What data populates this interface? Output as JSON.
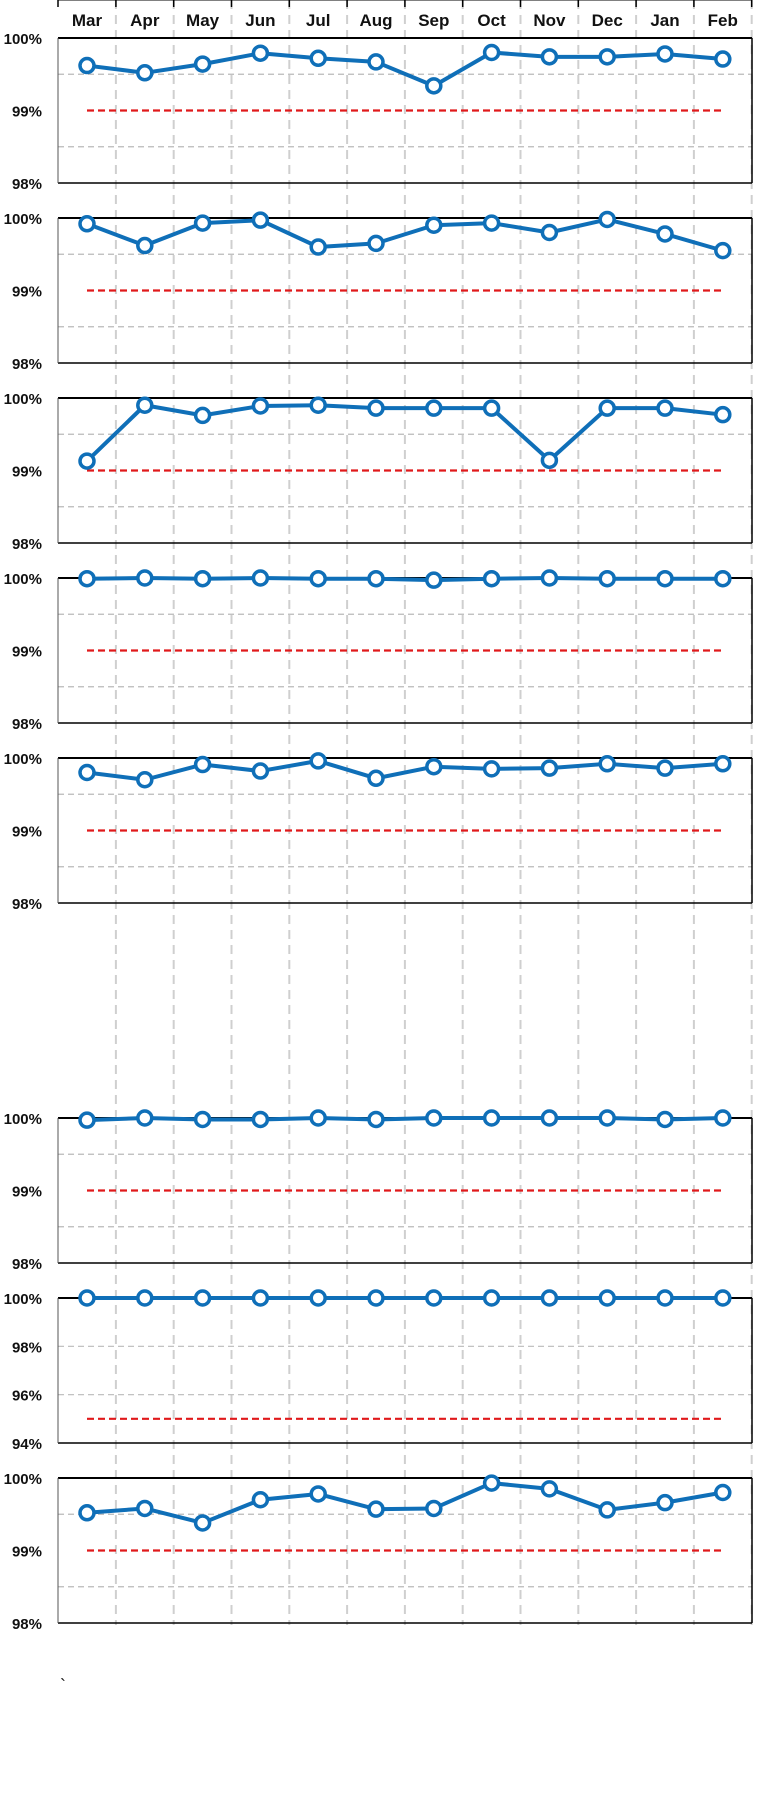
{
  "colors": {
    "series": "#0f6fb8",
    "target": "#e0191b",
    "grid": "#b9b9b9",
    "month_grid": "#cfcfcf",
    "frame": "#000000"
  },
  "stray_mark": "`",
  "chart_data": [
    {
      "type": "line",
      "categories": [
        "Mar",
        "Apr",
        "May",
        "Jun",
        "Jul",
        "Aug",
        "Sep",
        "Oct",
        "Nov",
        "Dec",
        "Jan",
        "Feb"
      ],
      "values": [
        99.62,
        99.52,
        99.64,
        99.79,
        99.72,
        99.67,
        99.34,
        99.8,
        99.74,
        99.74,
        99.78,
        99.71
      ],
      "target": 99.0,
      "ylim": [
        98,
        100
      ],
      "yticks": [
        "98%",
        "99%",
        "100%"
      ],
      "minor_gridlines": [
        98.5,
        99.5
      ],
      "grid": true
    },
    {
      "type": "line",
      "categories": [
        "Mar",
        "Apr",
        "May",
        "Jun",
        "Jul",
        "Aug",
        "Sep",
        "Oct",
        "Nov",
        "Dec",
        "Jan",
        "Feb"
      ],
      "values": [
        99.92,
        99.62,
        99.93,
        99.97,
        99.6,
        99.65,
        99.9,
        99.93,
        99.8,
        99.98,
        99.78,
        99.55
      ],
      "target": 99.0,
      "ylim": [
        98,
        100
      ],
      "yticks": [
        "98%",
        "99%",
        "100%"
      ],
      "minor_gridlines": [
        98.5,
        99.5
      ],
      "grid": true
    },
    {
      "type": "line",
      "categories": [
        "Mar",
        "Apr",
        "May",
        "Jun",
        "Jul",
        "Aug",
        "Sep",
        "Oct",
        "Nov",
        "Dec",
        "Jan",
        "Feb"
      ],
      "values": [
        99.13,
        99.9,
        99.76,
        99.89,
        99.9,
        99.86,
        99.86,
        99.86,
        99.14,
        99.86,
        99.86,
        99.77
      ],
      "target": 99.0,
      "ylim": [
        98,
        100
      ],
      "yticks": [
        "98%",
        "99%",
        "100%"
      ],
      "minor_gridlines": [
        98.5,
        99.5
      ],
      "grid": true
    },
    {
      "type": "line",
      "categories": [
        "Mar",
        "Apr",
        "May",
        "Jun",
        "Jul",
        "Aug",
        "Sep",
        "Oct",
        "Nov",
        "Dec",
        "Jan",
        "Feb"
      ],
      "values": [
        99.99,
        100.0,
        99.99,
        100.0,
        99.99,
        99.99,
        99.97,
        99.99,
        100.0,
        99.99,
        99.99,
        99.99
      ],
      "target": 99.0,
      "ylim": [
        98,
        100
      ],
      "yticks": [
        "98%",
        "99%",
        "100%"
      ],
      "minor_gridlines": [
        98.5,
        99.5
      ],
      "grid": true
    },
    {
      "type": "line",
      "categories": [
        "Mar",
        "Apr",
        "May",
        "Jun",
        "Jul",
        "Aug",
        "Sep",
        "Oct",
        "Nov",
        "Dec",
        "Jan",
        "Feb"
      ],
      "values": [
        99.8,
        99.7,
        99.91,
        99.82,
        99.96,
        99.72,
        99.88,
        99.85,
        99.86,
        99.92,
        99.86,
        99.92
      ],
      "target": 99.0,
      "ylim": [
        98,
        100
      ],
      "yticks": [
        "98%",
        "99%",
        "100%"
      ],
      "minor_gridlines": [
        98.5,
        99.5
      ],
      "grid": true
    },
    {
      "type": "line",
      "categories": [
        "Mar",
        "Apr",
        "May",
        "Jun",
        "Jul",
        "Aug",
        "Sep",
        "Oct",
        "Nov",
        "Dec",
        "Jan",
        "Feb"
      ],
      "values": [
        99.97,
        100.0,
        99.98,
        99.98,
        100.0,
        99.98,
        100.0,
        100.0,
        100.0,
        100.0,
        99.98,
        100.0
      ],
      "target": 99.0,
      "ylim": [
        98,
        100
      ],
      "yticks": [
        "98%",
        "99%",
        "100%"
      ],
      "minor_gridlines": [
        98.5,
        99.5
      ],
      "grid": true
    },
    {
      "type": "line",
      "categories": [
        "Mar",
        "Apr",
        "May",
        "Jun",
        "Jul",
        "Aug",
        "Sep",
        "Oct",
        "Nov",
        "Dec",
        "Jan",
        "Feb"
      ],
      "values": [
        100.0,
        100.0,
        100.0,
        100.0,
        100.0,
        100.0,
        100.0,
        100.0,
        100.0,
        100.0,
        100.0,
        100.0
      ],
      "target": 95.0,
      "ylim": [
        94,
        100
      ],
      "yticks": [
        "94%",
        "96%",
        "98%",
        "100%"
      ],
      "minor_gridlines": [
        96,
        98
      ],
      "grid": true
    },
    {
      "type": "line",
      "categories": [
        "Mar",
        "Apr",
        "May",
        "Jun",
        "Jul",
        "Aug",
        "Sep",
        "Oct",
        "Nov",
        "Dec",
        "Jan",
        "Feb"
      ],
      "values": [
        99.52,
        99.58,
        99.38,
        99.7,
        99.78,
        99.57,
        99.58,
        99.93,
        99.85,
        99.56,
        99.66,
        99.8
      ],
      "target": 99.0,
      "ylim": [
        98,
        100
      ],
      "yticks": [
        "98%",
        "99%",
        "100%"
      ],
      "minor_gridlines": [
        98.5,
        99.5
      ],
      "grid": true
    }
  ]
}
